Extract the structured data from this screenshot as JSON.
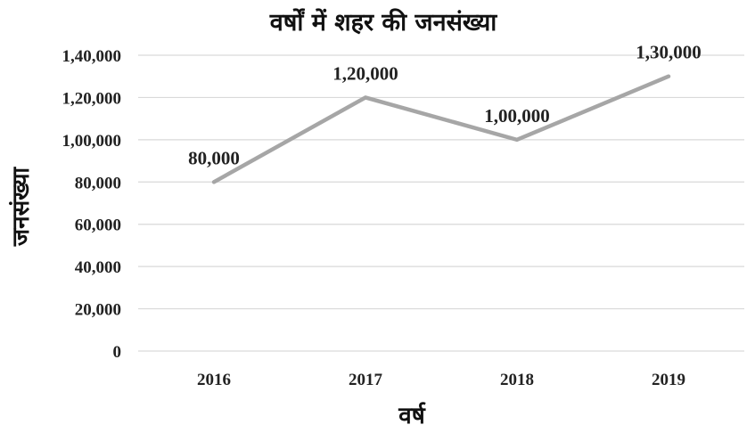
{
  "chart_data": {
    "type": "line",
    "title": "वर्षों में शहर की जनसंख्या",
    "xlabel": "वर्ष",
    "ylabel": "जनसंख्या",
    "categories": [
      "2016",
      "2017",
      "2018",
      "2019"
    ],
    "series": [
      {
        "values": [
          80000,
          120000,
          100000,
          130000
        ]
      }
    ],
    "data_labels": [
      "80,000",
      "1,20,000",
      "1,00,000",
      "1,30,000"
    ],
    "ylim": [
      0,
      140000
    ],
    "y_ticks": [
      0,
      20000,
      40000,
      60000,
      80000,
      100000,
      120000,
      140000
    ],
    "y_tick_labels": [
      "0",
      "20,000",
      "40,000",
      "60,000",
      "80,000",
      "1,00,000",
      "1,20,000",
      "1,40,000"
    ],
    "grid": true,
    "legend": "none",
    "line_color": "#a6a6a6"
  }
}
